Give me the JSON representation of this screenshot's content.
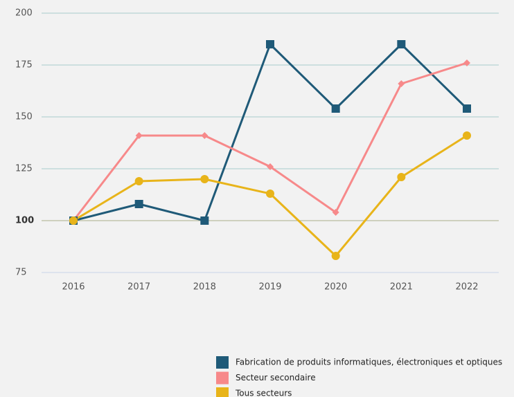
{
  "chart_data": {
    "type": "line",
    "x": [
      "2016",
      "2017",
      "2018",
      "2019",
      "2020",
      "2021",
      "2022"
    ],
    "series": [
      {
        "name": "Fabrication de produits informatiques, électroniques et optiques",
        "color": "#1f5a78",
        "marker": "square",
        "values": [
          100,
          108,
          100,
          185,
          154,
          185,
          154
        ]
      },
      {
        "name": "Secteur secondaire",
        "color": "#f7898a",
        "marker": "diamond",
        "values": [
          100,
          141,
          141,
          126,
          104,
          166,
          176
        ]
      },
      {
        "name": "Tous secteurs",
        "color": "#e8b41a",
        "marker": "circle",
        "values": [
          100,
          119,
          120,
          113,
          83,
          121,
          141
        ]
      }
    ],
    "ylim": [
      75,
      200
    ],
    "yticks": [
      75,
      100,
      125,
      150,
      175,
      200
    ],
    "grid": true,
    "reference_line": 100,
    "legend": "bottom"
  }
}
